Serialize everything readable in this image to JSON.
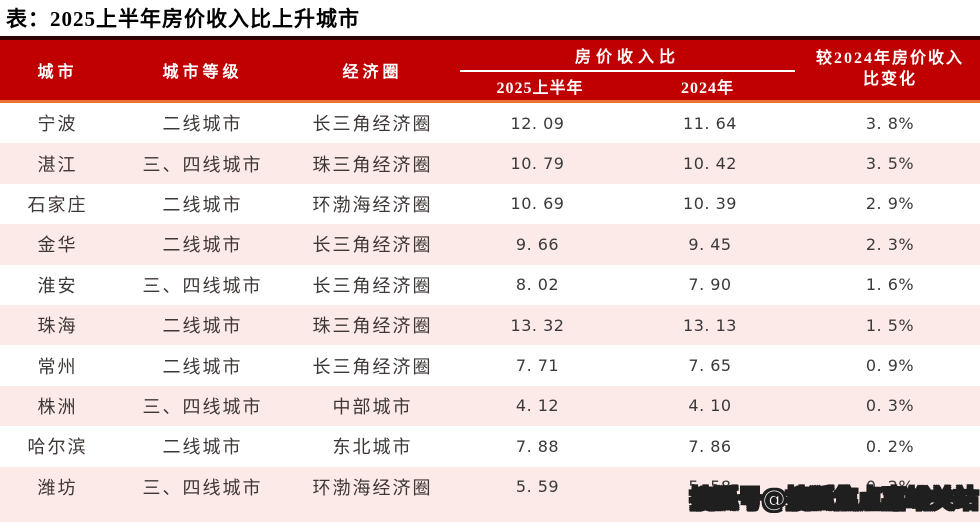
{
  "title": "表：2025上半年房价收入比上升城市",
  "watermark": "搜狐号@搜狐焦点嘉峪关站",
  "colors": {
    "header_bg": "#c00000",
    "header_top_line": "#2d0303",
    "header_bottom_line": "#e97132",
    "header_text": "#ffffff",
    "row_alt_bg": "#fceae8",
    "row_bg": "#ffffff",
    "body_text": "#3d3735",
    "title_text": "#000000",
    "watermark_fill": "#ffffff",
    "watermark_outline": "#1f1f1f"
  },
  "table": {
    "header": {
      "city": "城市",
      "tier": "城市等级",
      "region": "经济圈",
      "ratio_group": "房价收入比",
      "h1_2025": "2025上半年",
      "y2024": "2024年",
      "change_line1": "较2024年房价收入",
      "change_line2": "比变化"
    },
    "rows": [
      {
        "city": "宁波",
        "tier": "二线城市",
        "region": "长三角经济圈",
        "h1_2025": "12. 09",
        "y2024": "11. 64",
        "change": "3. 8%"
      },
      {
        "city": "湛江",
        "tier": "三、四线城市",
        "region": "珠三角经济圈",
        "h1_2025": "10. 79",
        "y2024": "10. 42",
        "change": "3. 5%"
      },
      {
        "city": "石家庄",
        "tier": "二线城市",
        "region": "环渤海经济圈",
        "h1_2025": "10. 69",
        "y2024": "10. 39",
        "change": "2. 9%"
      },
      {
        "city": "金华",
        "tier": "二线城市",
        "region": "长三角经济圈",
        "h1_2025": "9. 66",
        "y2024": "9. 45",
        "change": "2. 3%"
      },
      {
        "city": "淮安",
        "tier": "三、四线城市",
        "region": "长三角经济圈",
        "h1_2025": "8. 02",
        "y2024": "7. 90",
        "change": "1. 6%"
      },
      {
        "city": "珠海",
        "tier": "二线城市",
        "region": "珠三角经济圈",
        "h1_2025": "13. 32",
        "y2024": "13. 13",
        "change": "1. 5%"
      },
      {
        "city": "常州",
        "tier": "二线城市",
        "region": "长三角经济圈",
        "h1_2025": "7. 71",
        "y2024": "7. 65",
        "change": "0. 9%"
      },
      {
        "city": "株洲",
        "tier": "三、四线城市",
        "region": "中部城市",
        "h1_2025": "4. 12",
        "y2024": "4. 10",
        "change": "0. 3%"
      },
      {
        "city": "哈尔滨",
        "tier": "二线城市",
        "region": "东北城市",
        "h1_2025": "7. 88",
        "y2024": "7. 86",
        "change": "0. 2%"
      },
      {
        "city": "潍坊",
        "tier": "三、四线城市",
        "region": "环渤海经济圈",
        "h1_2025": "5. 59",
        "y2024": "5. 58",
        "change": "0. 2%"
      }
    ]
  },
  "chart_data": {
    "type": "table",
    "title": "表：2025上半年房价收入比上升城市",
    "columns": [
      "城市",
      "城市等级",
      "经济圈",
      "房价收入比 2025上半年",
      "房价收入比 2024年",
      "较2024年房价收入比变化"
    ],
    "rows": [
      [
        "宁波",
        "二线城市",
        "长三角经济圈",
        12.09,
        11.64,
        "3.8%"
      ],
      [
        "湛江",
        "三、四线城市",
        "珠三角经济圈",
        10.79,
        10.42,
        "3.5%"
      ],
      [
        "石家庄",
        "二线城市",
        "环渤海经济圈",
        10.69,
        10.39,
        "2.9%"
      ],
      [
        "金华",
        "二线城市",
        "长三角经济圈",
        9.66,
        9.45,
        "2.3%"
      ],
      [
        "淮安",
        "三、四线城市",
        "长三角经济圈",
        8.02,
        7.9,
        "1.6%"
      ],
      [
        "珠海",
        "二线城市",
        "珠三角经济圈",
        13.32,
        13.13,
        "1.5%"
      ],
      [
        "常州",
        "二线城市",
        "长三角经济圈",
        7.71,
        7.65,
        "0.9%"
      ],
      [
        "株洲",
        "三、四线城市",
        "中部城市",
        4.12,
        4.1,
        "0.3%"
      ],
      [
        "哈尔滨",
        "二线城市",
        "东北城市",
        7.88,
        7.86,
        "0.2%"
      ],
      [
        "潍坊",
        "三、四线城市",
        "环渤海经济圈",
        5.59,
        5.58,
        "0.2%"
      ]
    ]
  }
}
